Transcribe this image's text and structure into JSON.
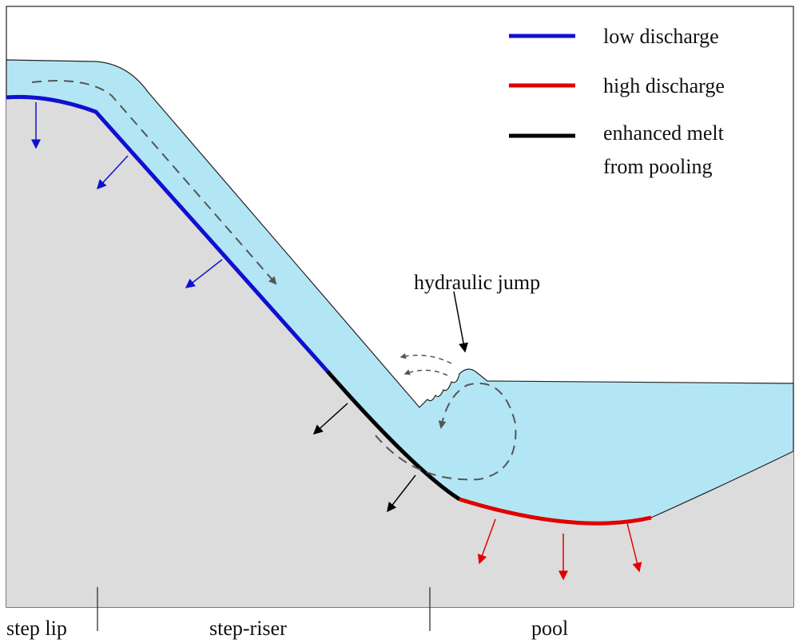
{
  "legend": [
    "low discharge",
    "high discharge",
    [
      "enhanced melt",
      "from pooling"
    ]
  ],
  "annotation": "hydraulic jump",
  "zones": [
    "step lip",
    "step-riser",
    "pool"
  ]
}
